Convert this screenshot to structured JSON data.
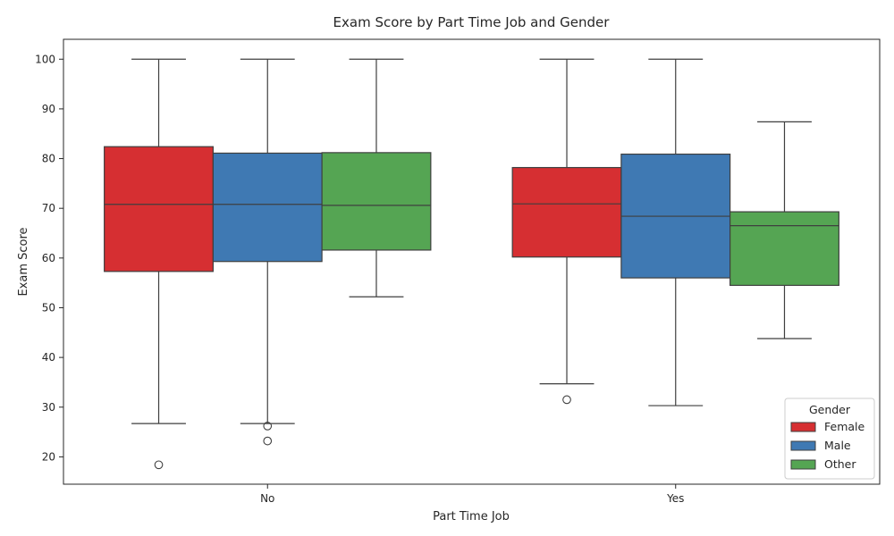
{
  "chart_data": {
    "type": "boxplot",
    "title": "Exam Score by Part Time Job and Gender",
    "xlabel": "Part Time Job",
    "ylabel": "Exam Score",
    "categories": [
      "No",
      "Yes"
    ],
    "ylim": [
      14.5,
      104
    ],
    "yticks": [
      20,
      30,
      40,
      50,
      60,
      70,
      80,
      90,
      100
    ],
    "grid": false,
    "legend": {
      "title": "Gender",
      "position": "lower-right"
    },
    "series": [
      {
        "name": "Female",
        "color": "#d62f32",
        "boxes": [
          {
            "category": "No",
            "q1": 57.3,
            "median": 70.8,
            "q3": 82.4,
            "whisker_low": 26.7,
            "whisker_high": 100,
            "outliers": [
              18.4
            ]
          },
          {
            "category": "Yes",
            "q1": 60.2,
            "median": 70.9,
            "q3": 78.2,
            "whisker_low": 34.7,
            "whisker_high": 100,
            "outliers": [
              31.5
            ]
          }
        ]
      },
      {
        "name": "Male",
        "color": "#3f79b3",
        "boxes": [
          {
            "category": "No",
            "q1": 59.3,
            "median": 70.8,
            "q3": 81.1,
            "whisker_low": 26.7,
            "whisker_high": 100,
            "outliers": [
              26.2,
              23.2
            ]
          },
          {
            "category": "Yes",
            "q1": 56.0,
            "median": 68.4,
            "q3": 80.9,
            "whisker_low": 30.3,
            "whisker_high": 100,
            "outliers": []
          }
        ]
      },
      {
        "name": "Other",
        "color": "#55a553",
        "boxes": [
          {
            "category": "No",
            "q1": 61.6,
            "median": 70.6,
            "q3": 81.2,
            "whisker_low": 52.2,
            "whisker_high": 100,
            "outliers": []
          },
          {
            "category": "Yes",
            "q1": 54.5,
            "median": 66.5,
            "q3": 69.3,
            "whisker_low": 43.8,
            "whisker_high": 87.4,
            "outliers": []
          }
        ]
      }
    ]
  }
}
